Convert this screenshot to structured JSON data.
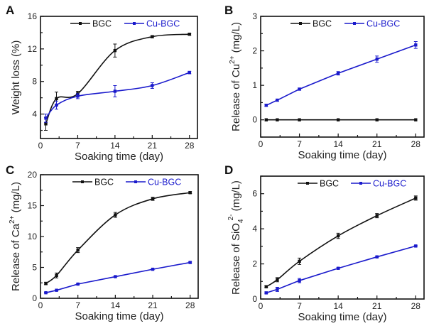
{
  "colors": {
    "BGC": "#111111",
    "Cu-BGC": "#1a1acc"
  },
  "chart_data": [
    {
      "panel": "A",
      "type": "line",
      "xlabel": "Soaking time (day)",
      "ylabel": {
        "text": "Weight loss (%)"
      },
      "xlim": [
        0,
        29.5
      ],
      "ylim": [
        1,
        16
      ],
      "xticks": [
        0,
        7,
        14,
        21,
        28
      ],
      "yticks": [
        4,
        8,
        12,
        16
      ],
      "x": [
        1,
        3,
        7,
        14,
        21,
        28
      ],
      "series": [
        {
          "name": "BGC",
          "values": [
            2.8,
            5.9,
            6.5,
            11.8,
            13.5,
            13.8
          ],
          "errors": [
            0.8,
            0.8,
            0.3,
            0.8,
            0.15,
            0.1
          ],
          "smooth": true
        },
        {
          "name": "Cu-BGC",
          "values": [
            3.5,
            5.1,
            6.2,
            6.8,
            7.5,
            9.1
          ],
          "errors": [
            0.5,
            0.5,
            0.3,
            0.7,
            0.35,
            0.15
          ],
          "smooth": true
        }
      ],
      "legend": "top"
    },
    {
      "panel": "B",
      "type": "line",
      "xlabel": "Soaking time (day)",
      "ylabel": {
        "text": "Release of  Cu",
        "sup": "2+",
        "unit": " (mg/L)"
      },
      "xlim": [
        0,
        29.5
      ],
      "ylim": [
        -0.5,
        3
      ],
      "xticks": [
        0,
        7,
        14,
        21,
        28
      ],
      "yticks": [
        0,
        1,
        2,
        3
      ],
      "x": [
        1,
        3,
        7,
        14,
        21,
        28
      ],
      "series": [
        {
          "name": "BGC",
          "values": [
            0,
            0,
            0,
            0,
            0,
            0
          ],
          "errors": [
            0,
            0,
            0,
            0,
            0,
            0
          ],
          "smooth": false
        },
        {
          "name": "Cu-BGC",
          "values": [
            0.42,
            0.57,
            0.89,
            1.35,
            1.76,
            2.17
          ],
          "errors": [
            0.03,
            0.03,
            0.03,
            0.05,
            0.09,
            0.1
          ],
          "smooth": false
        }
      ],
      "legend": "top"
    },
    {
      "panel": "C",
      "type": "line",
      "xlabel": "Soaking time (day)",
      "ylabel": {
        "text": "Release of Ca",
        "sup": "2+",
        "unit": " (mg/L)"
      },
      "xlim": [
        0,
        29.5
      ],
      "ylim": [
        0,
        20
      ],
      "xticks": [
        0,
        7,
        14,
        21,
        28
      ],
      "yticks": [
        0,
        5,
        10,
        15,
        20
      ],
      "x": [
        1,
        3,
        7,
        14,
        21,
        28
      ],
      "series": [
        {
          "name": "BGC",
          "values": [
            2.4,
            3.7,
            7.8,
            13.5,
            16.1,
            17.1
          ],
          "errors": [
            0.2,
            0.4,
            0.4,
            0.4,
            0.25,
            0.15
          ],
          "smooth": true
        },
        {
          "name": "Cu-BGC",
          "values": [
            0.9,
            1.3,
            2.3,
            3.5,
            4.7,
            5.8
          ],
          "errors": [
            0.05,
            0.05,
            0.05,
            0.05,
            0.05,
            0.1
          ],
          "smooth": false
        }
      ],
      "legend": "top"
    },
    {
      "panel": "D",
      "type": "line",
      "xlabel": "Soaking time (day)",
      "ylabel": {
        "text": "Release of  SiO",
        "sub": "4",
        "sup": "2-",
        "unit": " (mg/L)"
      },
      "xlim": [
        0,
        29.5
      ],
      "ylim": [
        0,
        7
      ],
      "xticks": [
        0,
        7,
        14,
        21,
        28
      ],
      "yticks": [
        0,
        2,
        4,
        6
      ],
      "x": [
        1,
        3,
        7,
        14,
        21,
        28
      ],
      "series": [
        {
          "name": "BGC",
          "values": [
            0.7,
            1.1,
            2.15,
            3.6,
            4.75,
            5.75
          ],
          "errors": [
            0.05,
            0.12,
            0.18,
            0.15,
            0.12,
            0.12
          ],
          "smooth": true
        },
        {
          "name": "Cu-BGC",
          "values": [
            0.35,
            0.55,
            1.05,
            1.75,
            2.4,
            3.02
          ],
          "errors": [
            0.05,
            0.12,
            0.12,
            0.05,
            0.04,
            0.04
          ],
          "smooth": false
        }
      ],
      "legend": "top"
    }
  ]
}
